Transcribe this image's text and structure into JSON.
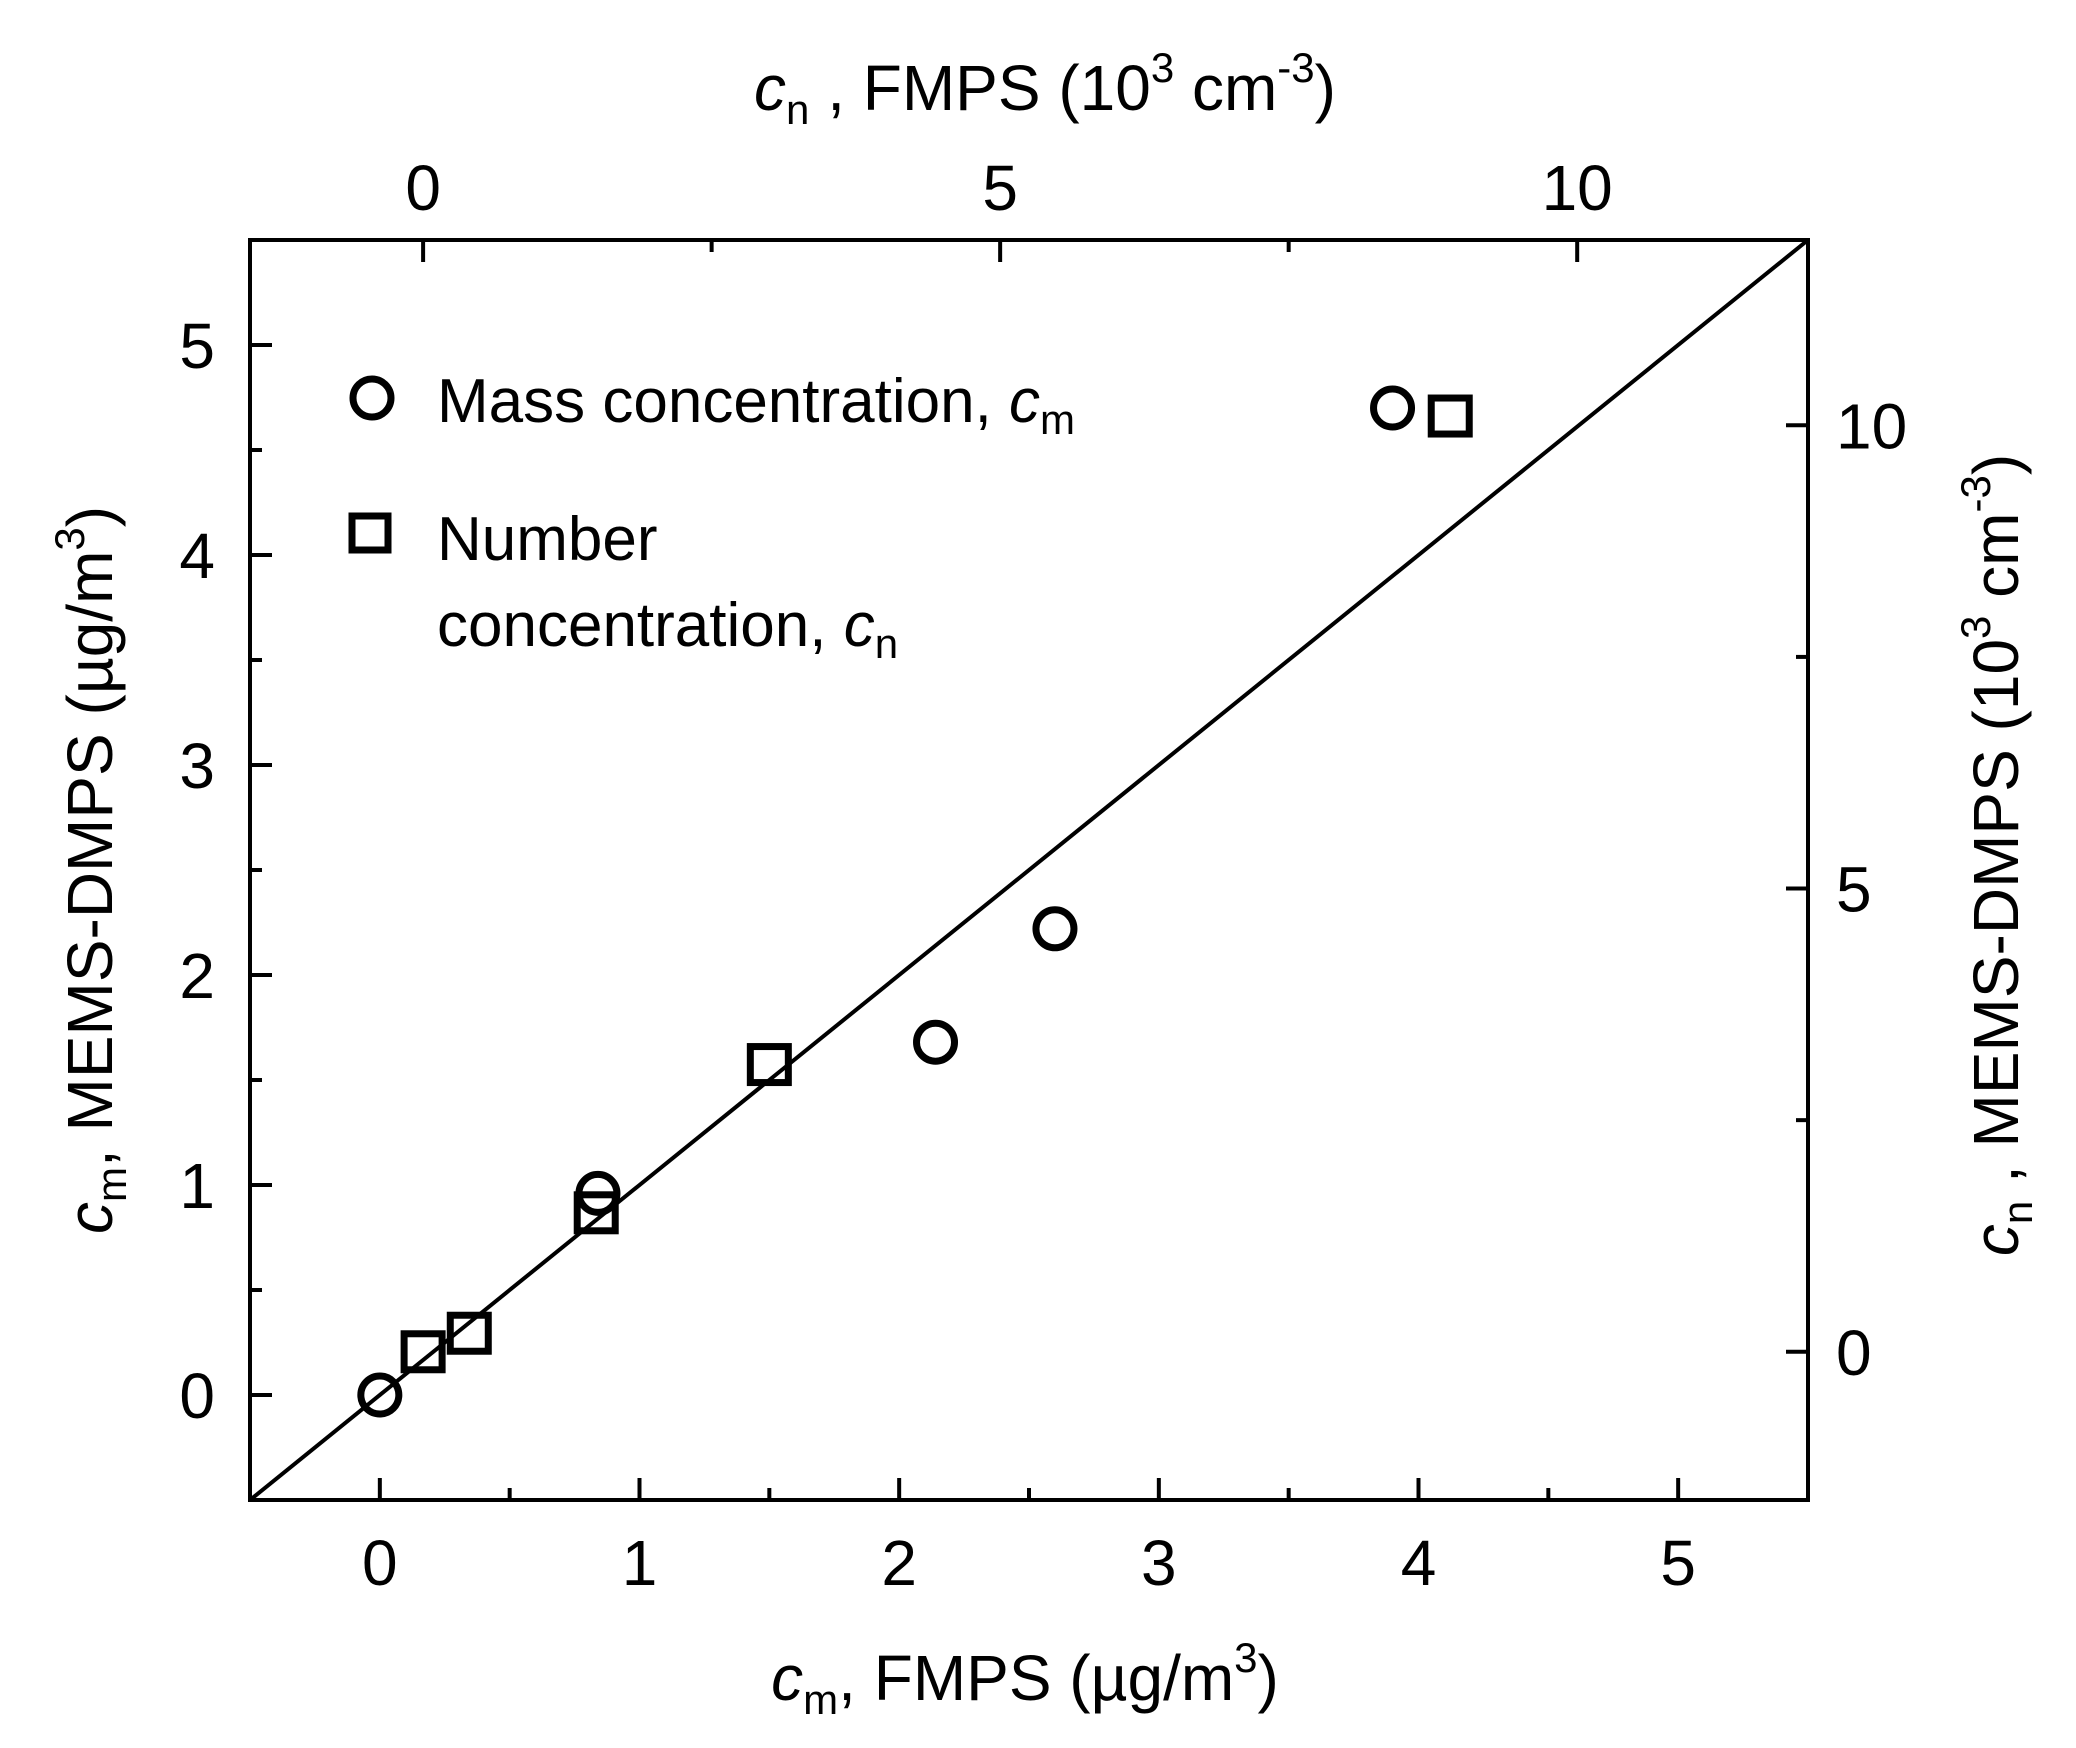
{
  "chart_data": {
    "type": "scatter",
    "x_bottom": {
      "label": {
        "var": "c",
        "sub": "m",
        "rest": ", FMPS (µg/m",
        "sup": "3",
        "close": ")"
      },
      "range": [
        -0.5,
        5.5
      ],
      "ticks": [
        0,
        1,
        2,
        3,
        4,
        5
      ],
      "tick_labels": [
        "0",
        "1",
        "2",
        "3",
        "4",
        "5"
      ]
    },
    "y_left": {
      "label": {
        "var": "c",
        "sub": "m",
        "rest": ", MEMS-DMPS (µg/m",
        "sup": "3",
        "close": ")"
      },
      "range": [
        -0.5,
        5.5
      ],
      "ticks": [
        0,
        1,
        2,
        3,
        4,
        5
      ],
      "tick_labels": [
        "0",
        "1",
        "2",
        "3",
        "4",
        "5"
      ]
    },
    "x_top": {
      "label": {
        "var": "c",
        "sub": "n",
        "rest": " , FMPS (10",
        "sup": "3",
        "unit": " cm",
        "sup2": "-3",
        "close": ")"
      },
      "range": [
        -1.5,
        12
      ],
      "ticks": [
        0,
        5,
        10
      ],
      "tick_labels": [
        "0",
        "5",
        "10"
      ]
    },
    "y_right": {
      "label": {
        "var": "c",
        "sub": "n",
        "rest": " , MEMS-DMPS (10",
        "sup": "3",
        "unit": " cm",
        "sup2": "-3",
        "close": ")"
      },
      "range": [
        -1.6,
        12
      ],
      "ticks": [
        0,
        5,
        10
      ],
      "tick_labels": [
        "0",
        "5",
        "10"
      ]
    },
    "reference_line": {
      "label": "1:1",
      "from": [
        -0.5,
        -0.5
      ],
      "to": [
        5.5,
        5.5
      ]
    },
    "series": [
      {
        "name": "Mass concentration",
        "marker": "circle",
        "legend": {
          "text": "Mass concentration, ",
          "var": "c",
          "sub": "m"
        },
        "points": [
          [
            0.0,
            0.0
          ],
          [
            0.84,
            0.96
          ],
          [
            2.14,
            1.68
          ],
          [
            2.6,
            2.22
          ],
          [
            3.9,
            4.7
          ]
        ]
      },
      {
        "name": "Number concentration",
        "marker": "square",
        "legend": {
          "line1": "Number",
          "line2": "concentration, ",
          "var": "c",
          "sub": "n"
        },
        "points_top_right_axes": [
          [
            0.0,
            0.0
          ],
          [
            0.4,
            0.2
          ],
          [
            1.5,
            1.5
          ],
          [
            3.0,
            3.1
          ],
          [
            8.9,
            10.1
          ]
        ]
      }
    ]
  }
}
